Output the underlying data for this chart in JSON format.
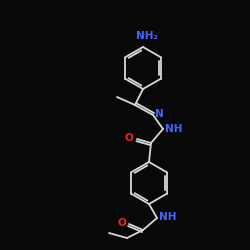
{
  "bg_color": "#080808",
  "bond_color": "#d8d8d8",
  "N_color": "#4466ff",
  "O_color": "#ee2222",
  "figsize": [
    2.5,
    2.5
  ],
  "dpi": 100,
  "label_NH2": "NH₂",
  "label_N": "N",
  "label_NH": "NH",
  "label_O": "O"
}
